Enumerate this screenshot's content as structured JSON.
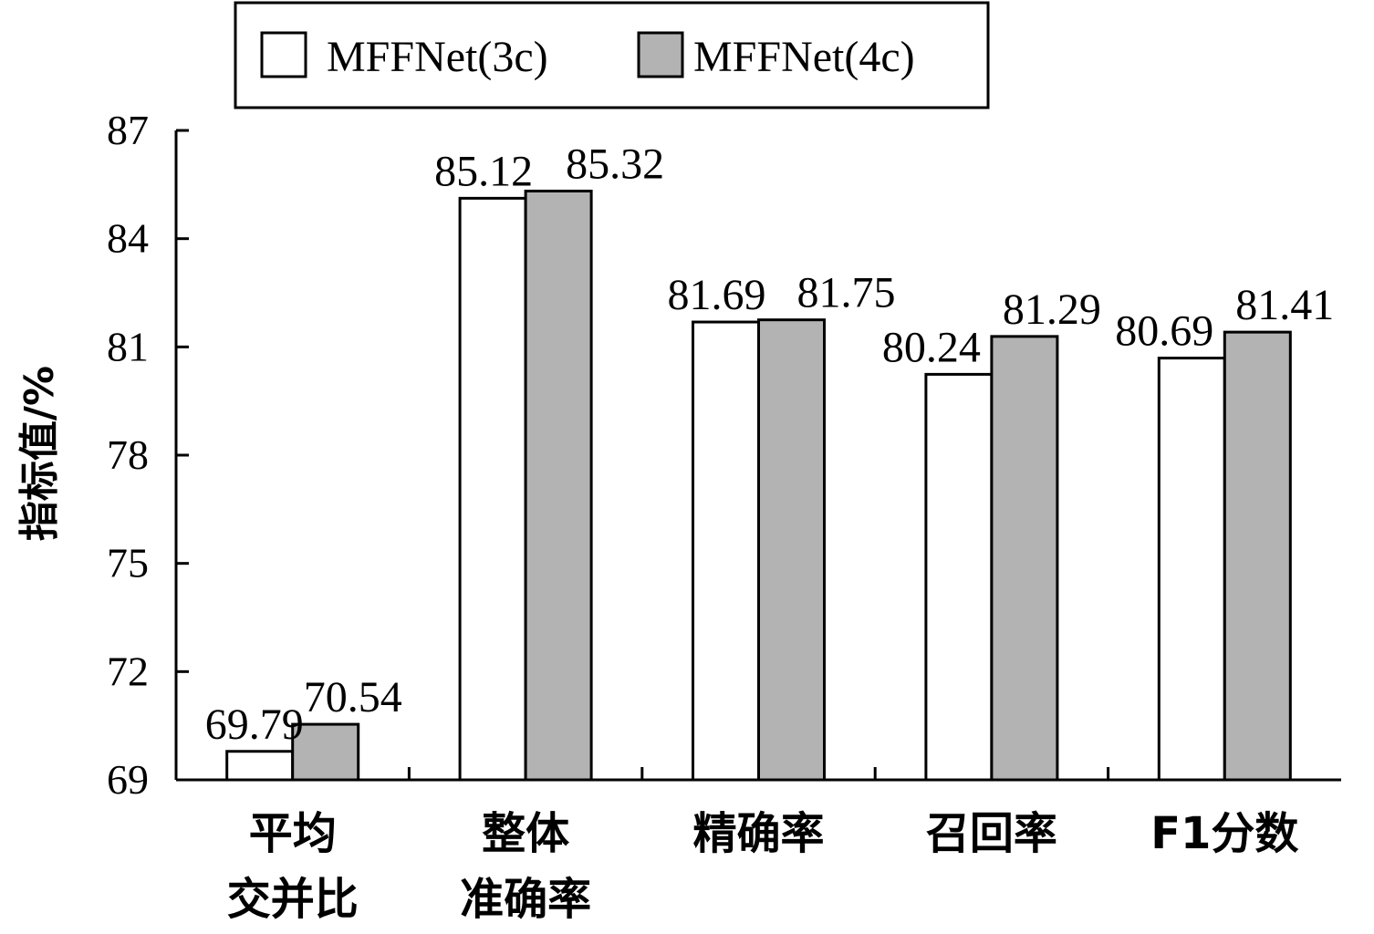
{
  "chart_data": {
    "type": "bar",
    "categories": [
      [
        "平均",
        "交并比"
      ],
      [
        "整体",
        "准确率"
      ],
      [
        "精确率"
      ],
      [
        "召回率"
      ],
      [
        "F1分数"
      ]
    ],
    "series": [
      {
        "name": "MFFNet(3c)",
        "values": [
          69.79,
          85.12,
          81.69,
          80.24,
          80.69
        ],
        "color": "#ffffff"
      },
      {
        "name": "MFFNet(4c)",
        "values": [
          70.54,
          85.32,
          81.75,
          81.29,
          81.41
        ],
        "color": "#b3b3b3"
      }
    ],
    "data_labels": [
      [
        "69.79",
        "85.12",
        "81.69",
        "80.24",
        "80.69"
      ],
      [
        "70.54",
        "85.32",
        "81.75",
        "81.29",
        "81.41"
      ]
    ],
    "ylabel": "指标值/%",
    "ylim": [
      69,
      87
    ],
    "yticks": [
      69,
      72,
      75,
      78,
      81,
      84,
      87
    ],
    "grid": false,
    "legend_position": "top"
  }
}
